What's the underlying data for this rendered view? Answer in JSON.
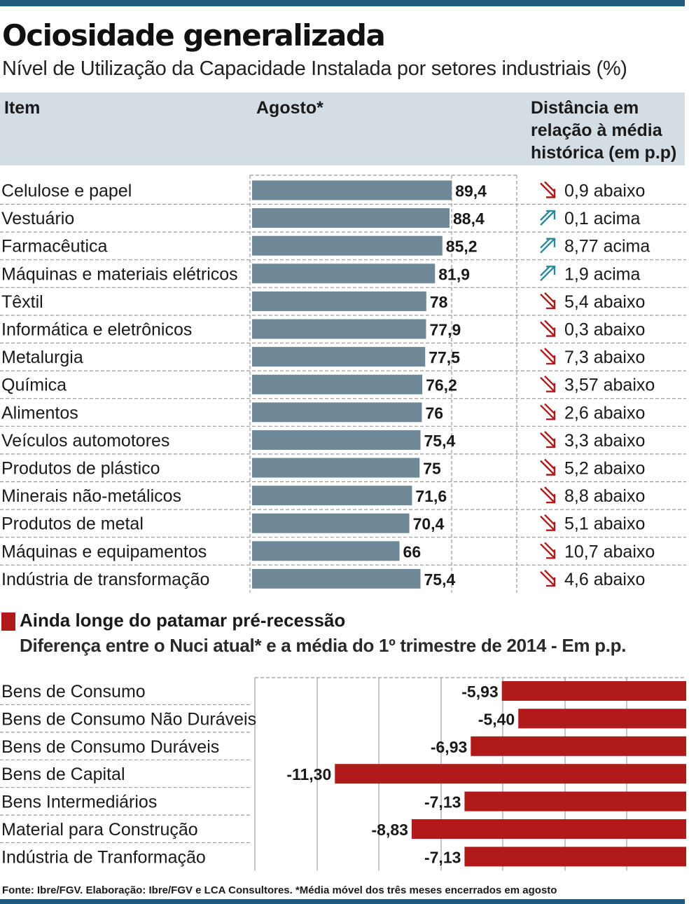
{
  "title": "Ociosidade generalizada",
  "subtitle": "Nível de Utilização da Capacidade Instalada por setores industriais (%)",
  "table_headers": {
    "item": "Item",
    "august": "Agosto*",
    "distance": "Distância em relação à média histórica (em p.p)"
  },
  "colors": {
    "bar1": "#6e8897",
    "bar2": "#b01a1a",
    "accent": "#1e5a7d",
    "arrow_down": "#b01a1a",
    "arrow_up": "#2a8a9a"
  },
  "section2": {
    "title": "Ainda longe do patamar pré-recessão",
    "subtitle": "Diferença entre o Nuci atual* e a média do 1º trimestre de 2014 - Em p.p."
  },
  "source": "Fonte: Ibre/FGV. Elaboração: Ibre/FGV e LCA Consultores. *Média móvel dos três meses encerrados em agosto",
  "chart_data": [
    {
      "type": "bar",
      "orientation": "horizontal",
      "categories": [
        "Celulose e papel",
        "Vestuário",
        "Farmacêutica",
        "Máquinas e materiais elétricos",
        "Têxtil",
        "Informática e eletrônicos",
        "Metalurgia",
        "Química",
        "Alimentos",
        "Veículos automotores",
        "Produtos de plástico",
        "Minerais não-metálicos",
        "Produtos de metal",
        "Máquinas e equipamentos",
        "Indústria de transformação"
      ],
      "values": [
        89.4,
        88.4,
        85.2,
        81.9,
        78,
        77.9,
        77.5,
        76.2,
        76,
        75.4,
        75,
        71.6,
        70.4,
        66,
        75.4
      ],
      "value_labels": [
        "89,4",
        "88,4",
        "85,2",
        "81,9",
        "78",
        "77,9",
        "77,5",
        "76,2",
        "76",
        "75,4",
        "75",
        "71,6",
        "70,4",
        "66",
        "75,4"
      ],
      "distance": [
        {
          "direction": "down",
          "label": "0,9 abaixo"
        },
        {
          "direction": "up",
          "label": "0,1 acima"
        },
        {
          "direction": "up",
          "label": "8,77 acima"
        },
        {
          "direction": "up",
          "label": "1,9 acima"
        },
        {
          "direction": "down",
          "label": "5,4 abaixo"
        },
        {
          "direction": "down",
          "label": "0,3 abaixo"
        },
        {
          "direction": "down",
          "label": "7,3 abaixo"
        },
        {
          "direction": "down",
          "label": "3,57 abaixo"
        },
        {
          "direction": "down",
          "label": "2,6 abaixo"
        },
        {
          "direction": "down",
          "label": "3,3 abaixo"
        },
        {
          "direction": "down",
          "label": "5,2 abaixo"
        },
        {
          "direction": "down",
          "label": "8,8 abaixo"
        },
        {
          "direction": "down",
          "label": "5,1 abaixo"
        },
        {
          "direction": "down",
          "label": "10,7 abaixo"
        },
        {
          "direction": "down",
          "label": "4,6 abaixo"
        }
      ],
      "xlim": [
        0,
        100
      ]
    },
    {
      "type": "bar",
      "orientation": "horizontal",
      "categories": [
        "Bens de Consumo",
        "Bens de Consumo Não Duráveis",
        "Bens de Consumo Duráveis",
        "Bens de Capital",
        "Bens Intermediários",
        "Material para Construção",
        "Indústria de Tranformação"
      ],
      "values": [
        -5.93,
        -5.4,
        -6.93,
        -11.3,
        -7.13,
        -8.83,
        -7.13
      ],
      "value_labels": [
        "-5,93",
        "-5,40",
        "-6,93",
        "-11,30",
        "-7,13",
        "-8,83",
        "-7,13"
      ],
      "xlim": [
        -12.5,
        0
      ]
    }
  ]
}
